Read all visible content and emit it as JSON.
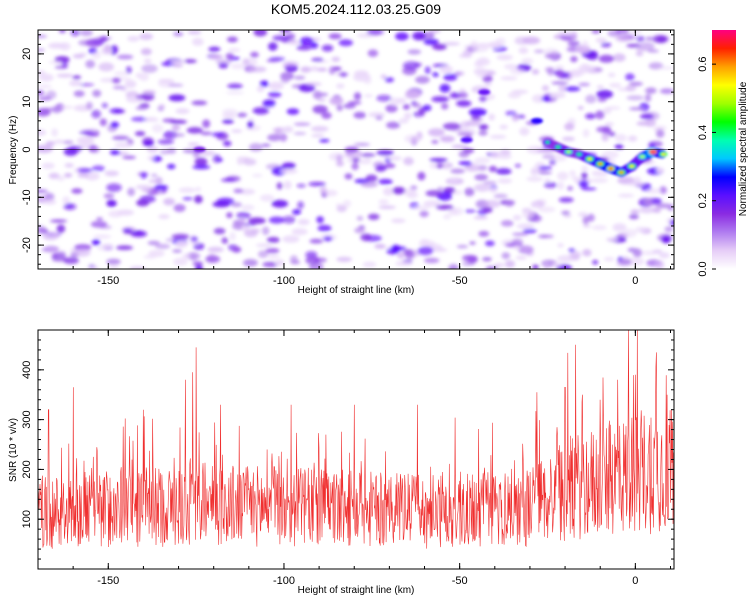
{
  "title": "KOM5.2024.112.03.25.G09",
  "colors": {
    "snr_line": "#f03030",
    "axes": "#000000",
    "colormap": [
      "#ffffff",
      "#e6cdf7",
      "#b07cf0",
      "#8a2be2",
      "#5a10ff",
      "#0000ff",
      "#00c8ff",
      "#00ffb0",
      "#00ff00",
      "#a0ff00",
      "#ffff00",
      "#ffa000",
      "#ff2000",
      "#ff0080"
    ]
  },
  "chart_data": [
    {
      "type": "heatmap",
      "xlabel": "Height of straight line (km)",
      "ylabel": "Frequency (Hz)",
      "xlim": [
        -170,
        11
      ],
      "ylim": [
        -25,
        25
      ],
      "xticks": [
        -150,
        -100,
        -50,
        0
      ],
      "yticks": [
        -20,
        -10,
        0,
        10,
        20
      ],
      "colorbar": {
        "label": "Normalized spectral amplitude",
        "range": [
          0,
          0.7
        ],
        "ticks": [
          "0.0",
          "0.2",
          "0.4",
          "0.6"
        ]
      },
      "track": [
        {
          "x": -25,
          "y": 1.5,
          "v": 0.25
        },
        {
          "x": -22,
          "y": 0.5,
          "v": 0.3
        },
        {
          "x": -19,
          "y": -0.5,
          "v": 0.35
        },
        {
          "x": -16,
          "y": -1,
          "v": 0.3
        },
        {
          "x": -13,
          "y": -2,
          "v": 0.4
        },
        {
          "x": -10,
          "y": -3,
          "v": 0.45
        },
        {
          "x": -7,
          "y": -4,
          "v": 0.5
        },
        {
          "x": -4,
          "y": -4.8,
          "v": 0.45
        },
        {
          "x": -1,
          "y": -3.5,
          "v": 0.4
        },
        {
          "x": 2,
          "y": -1.5,
          "v": 0.35
        },
        {
          "x": 5,
          "y": -0.5,
          "v": 0.6
        },
        {
          "x": 8,
          "y": -1,
          "v": 0.4
        }
      ],
      "blobs": [
        {
          "x": -48,
          "y": 2,
          "v": 0.22
        },
        {
          "x": -43,
          "y": 12,
          "v": 0.2
        },
        {
          "x": -28,
          "y": 6,
          "v": 0.25
        },
        {
          "x": -124,
          "y": 0,
          "v": 0.18
        }
      ]
    },
    {
      "type": "line",
      "xlabel": "Height of straight line (km)",
      "ylabel": "SNR (10 * v/v)",
      "xlim": [
        -170,
        11
      ],
      "ylim": [
        0,
        480
      ],
      "xticks": [
        -150,
        -100,
        -50,
        0
      ],
      "yticks": [
        100,
        200,
        300,
        400
      ],
      "series": [
        {
          "x_start": -170,
          "x_end": 11,
          "n_points": 1300,
          "base_points": [
            [
              -170,
              115
            ],
            [
              -120,
              130
            ],
            [
              -60,
              115
            ],
            [
              -30,
              125
            ],
            [
              -20,
              160
            ],
            [
              -5,
              185
            ],
            [
              11,
              210
            ]
          ],
          "spike_peaks": [
            [
              -167,
              320
            ],
            [
              -160,
              365
            ],
            [
              -140,
              320
            ],
            [
              -125,
              445
            ],
            [
              -128,
              380
            ],
            [
              -126,
              395
            ],
            [
              -118,
              330
            ],
            [
              -98,
              330
            ],
            [
              -80,
              330
            ],
            [
              -62,
              330
            ],
            [
              -28,
              355
            ],
            [
              -20,
              365
            ],
            [
              -15,
              350
            ],
            [
              -10,
              340
            ],
            [
              -5,
              380
            ],
            [
              -2,
              480
            ],
            [
              0,
              390
            ],
            [
              6,
              435
            ],
            [
              9,
              350
            ]
          ]
        }
      ]
    }
  ]
}
